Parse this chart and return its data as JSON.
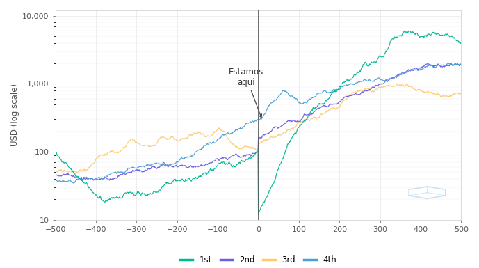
{
  "colors": {
    "1st": "#00b894",
    "2nd": "#6c5ce7",
    "3rd": "#fdcb6e",
    "4th": "#4a9fd4"
  },
  "annotation_text": "Estamos\naqui",
  "vline_x": 0,
  "ylabel": "USD (log scale)",
  "ylim": [
    10,
    12000
  ],
  "xlim": [
    -500,
    500
  ],
  "xticks": [
    -500,
    -400,
    -300,
    -200,
    -100,
    0,
    100,
    200,
    300,
    400,
    500
  ],
  "yticks": [
    10,
    100,
    1000,
    10000
  ],
  "ytick_labels": [
    "10",
    "100",
    "1,000",
    "10,000"
  ],
  "legend_labels": [
    "1st",
    "2nd",
    "3rd",
    "4th"
  ],
  "background_color": "#ffffff",
  "grid_color": "#e8e8e8",
  "logo_color": "#b8d4e8"
}
